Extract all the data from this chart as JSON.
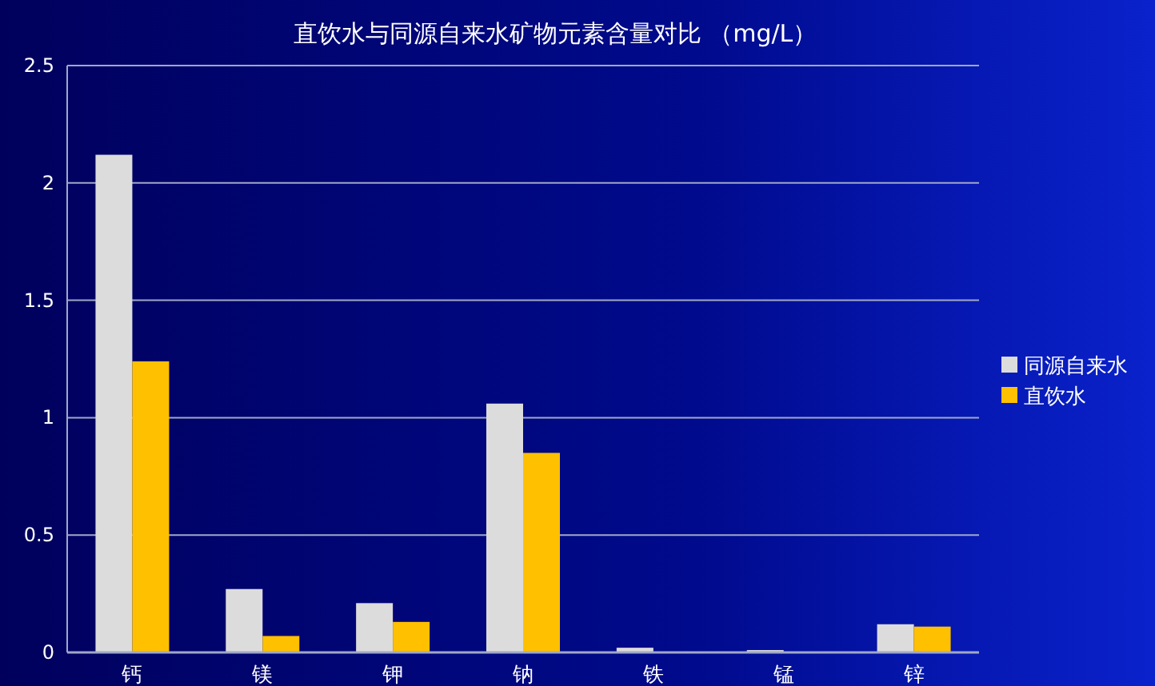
{
  "chart_data": {
    "type": "bar",
    "title": "直饮水与同源自来水矿物元素含量对比 （mg/L）",
    "categories": [
      "钙",
      "镁",
      "钾",
      "钠",
      "铁",
      "锰",
      "锌"
    ],
    "series": [
      {
        "name": "同源自来水",
        "color": "#dcdcdc",
        "values": [
          2.12,
          0.27,
          0.21,
          1.06,
          0.02,
          0.01,
          0.12
        ]
      },
      {
        "name": "直饮水",
        "color": "#ffc000",
        "values": [
          1.24,
          0.07,
          0.13,
          0.85,
          0,
          0,
          0.11
        ]
      }
    ],
    "ylim": [
      0,
      2.5
    ],
    "yticks": [
      0,
      0.5,
      1,
      1.5,
      2,
      2.5
    ],
    "grid": "y",
    "legend": "right"
  }
}
